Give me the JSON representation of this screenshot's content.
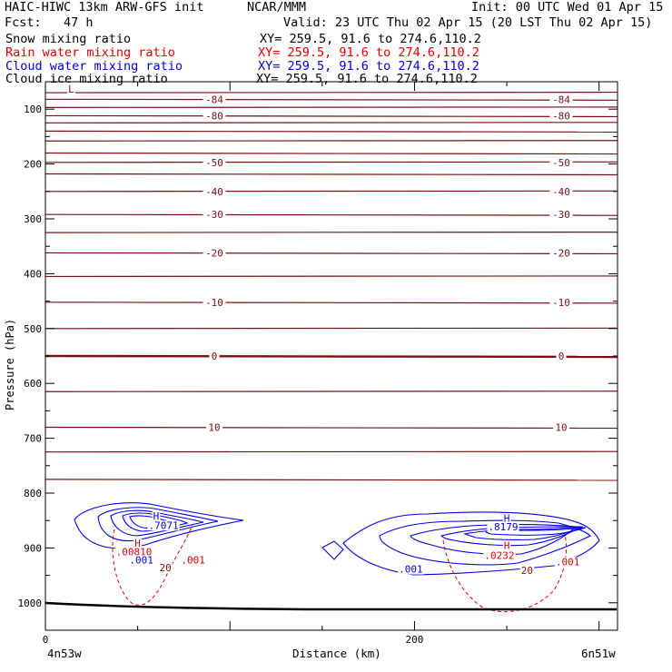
{
  "header": {
    "model": "HAIC-HIWC 13km ARW-GFS init",
    "org": "NCAR/MMM",
    "init": "Init: 00 UTC Wed 01 Apr 15",
    "fcst": "Fcst:   47 h",
    "valid": "Valid: 23 UTC Thu 02 Apr 15 (20 LST Thu 02 Apr 15)",
    "fields": [
      {
        "name": "Snow mixing ratio",
        "xy": "XY= 259.5, 91.6 to 274.6,110.2",
        "color": "#000000"
      },
      {
        "name": "Rain water mixing ratio",
        "xy": "XY= 259.5, 91.6 to 274.6,110.2",
        "color": "#e00000"
      },
      {
        "name": "Cloud water mixing ratio",
        "xy": "XY= 259.5, 91.6 to 274.6,110.2",
        "color": "#0000e0"
      },
      {
        "name": "Cloud ice mixing ratio",
        "xy": "XY= 259.5, 91.6 to 274.6,110.2",
        "color": "#000000"
      }
    ]
  },
  "chart_data": {
    "type": "cross-section",
    "xlabel": "Distance (km)",
    "ylabel": "Pressure (hPa)",
    "xlim": [
      0,
      310
    ],
    "x_ticks": [
      0,
      200
    ],
    "ylim_hPa": [
      1050,
      50
    ],
    "y_ticks": [
      100,
      200,
      300,
      400,
      500,
      600,
      700,
      800,
      900,
      1000
    ],
    "endpoints": {
      "left": "4n53w",
      "right": "6n51w"
    },
    "temperature_isotherms": {
      "color": "#7a1010",
      "levels": [
        {
          "pressure": 70,
          "label": ""
        },
        {
          "pressure": 82,
          "label": "-84"
        },
        {
          "pressure": 97,
          "label": ""
        },
        {
          "pressure": 112,
          "label": "-80"
        },
        {
          "pressure": 125,
          "label": ""
        },
        {
          "pressure": 140,
          "label": ""
        },
        {
          "pressure": 158,
          "label": ""
        },
        {
          "pressure": 180,
          "label": ""
        },
        {
          "pressure": 197,
          "label": "-50"
        },
        {
          "pressure": 218,
          "label": ""
        },
        {
          "pressure": 250,
          "label": "-40"
        },
        {
          "pressure": 292,
          "label": "-30"
        },
        {
          "pressure": 325,
          "label": ""
        },
        {
          "pressure": 362,
          "label": "-20"
        },
        {
          "pressure": 405,
          "label": ""
        },
        {
          "pressure": 452,
          "label": "-10"
        },
        {
          "pressure": 500,
          "label": ""
        },
        {
          "pressure": 550,
          "label": "0"
        },
        {
          "pressure": 615,
          "label": ""
        },
        {
          "pressure": 680,
          "label": "10"
        },
        {
          "pressure": 725,
          "label": ""
        },
        {
          "pressure": 775,
          "label": ""
        }
      ]
    },
    "annotations": [
      {
        "text": "L",
        "x": 14,
        "p": 70,
        "color": "#7a1010"
      },
      {
        "text": "H",
        "x": 60,
        "p": 848,
        "color": "#0000e0"
      },
      {
        "text": ".7071",
        "x": 64,
        "p": 865,
        "color": "#0000e0"
      },
      {
        "text": "H",
        "x": 50,
        "p": 898,
        "color": "#e00000"
      },
      {
        "text": ".00810",
        "x": 48,
        "p": 913,
        "color": "#e00000"
      },
      {
        "text": ".001",
        "x": 52,
        "p": 928,
        "color": "#0000e0"
      },
      {
        "text": ".001",
        "x": 80,
        "p": 928,
        "color": "#e00000"
      },
      {
        "text": "20",
        "x": 65,
        "p": 942,
        "color": "#7a1010"
      },
      {
        "text": "H",
        "x": 250,
        "p": 852,
        "color": "#0000e0"
      },
      {
        "text": ".8179",
        "x": 248,
        "p": 868,
        "color": "#0000e0"
      },
      {
        "text": "H",
        "x": 250,
        "p": 902,
        "color": "#e00000"
      },
      {
        "text": ".0232",
        "x": 246,
        "p": 920,
        "color": "#e00000"
      },
      {
        "text": ".001",
        "x": 198,
        "p": 945,
        "color": "#0000e0"
      },
      {
        "text": ".001",
        "x": 283,
        "p": 932,
        "color": "#e00000"
      },
      {
        "text": "20",
        "x": 261,
        "p": 947,
        "color": "#7a1010"
      }
    ]
  },
  "colors": {
    "isotherm": "#7a1010",
    "rain": "#e00000",
    "cloud_water": "#0000e0",
    "terrain": "#000000"
  }
}
